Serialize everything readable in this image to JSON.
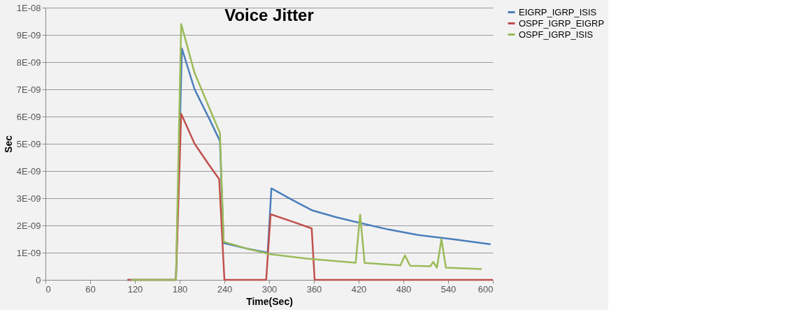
{
  "chart_data": {
    "type": "line",
    "title": "Voice Jitter",
    "xlabel": "Time(Sec)",
    "ylabel": "Sec",
    "xlim": [
      0,
      600
    ],
    "xticks": [
      0,
      60,
      120,
      180,
      240,
      300,
      360,
      420,
      480,
      540,
      600
    ],
    "ylim": [
      0,
      1e-08
    ],
    "yticks": [
      {
        "value": 0,
        "label": "0"
      },
      {
        "value": 1e-09,
        "label": "1E-09"
      },
      {
        "value": 2e-09,
        "label": "2E-09"
      },
      {
        "value": 3e-09,
        "label": "3E-09"
      },
      {
        "value": 4e-09,
        "label": "4E-09"
      },
      {
        "value": 5e-09,
        "label": "5E-09"
      },
      {
        "value": 6e-09,
        "label": "6E-09"
      },
      {
        "value": 7e-09,
        "label": "7E-09"
      },
      {
        "value": 8e-09,
        "label": "8E-09"
      },
      {
        "value": 9e-09,
        "label": "9E-09"
      },
      {
        "value": 1e-08,
        "label": "1E-08"
      }
    ],
    "grid": "y",
    "legend": "right",
    "marker": "none",
    "line_style": "solid",
    "series": [
      {
        "name": "EIGRP_IGRP_ISIS",
        "color": "#4a7ebb",
        "x": [
          110,
          175,
          183,
          200,
          220,
          234,
          239,
          270,
          298,
          303,
          330,
          358,
          390,
          425,
          460,
          500,
          550,
          597
        ],
        "values": [
          0,
          0,
          8.5e-09,
          7e-09,
          5.9e-09,
          5.1e-09,
          1.35e-09,
          1.15e-09,
          1e-09,
          3.36e-09,
          2.95e-09,
          2.55e-09,
          2.3e-09,
          2.07e-09,
          1.85e-09,
          1.65e-09,
          1.48e-09,
          1.31e-09
        ]
      },
      {
        "name": "OSPF_IGRP_EIGRP",
        "color": "#c0504d",
        "x": [
          110,
          175,
          182,
          200,
          220,
          233,
          240,
          296,
          302,
          330,
          357,
          361,
          600
        ],
        "values": [
          0,
          0,
          6.1e-09,
          5e-09,
          4.2e-09,
          3.7e-09,
          0,
          0,
          2.41e-09,
          2.15e-09,
          1.89e-09,
          0,
          0
        ]
      },
      {
        "name": "OSPF_IGRP_ISIS",
        "color": "#9bbb59",
        "x": [
          115,
          175,
          182,
          200,
          220,
          234,
          239,
          270,
          300,
          350,
          416,
          422,
          428,
          476,
          482,
          489,
          516,
          520,
          525,
          531,
          537,
          585
        ],
        "values": [
          0,
          0,
          9.4e-09,
          7.6e-09,
          6.3e-09,
          5.4e-09,
          1.4e-09,
          1.15e-09,
          9.5e-10,
          7.8e-10,
          6.3e-10,
          2.4e-09,
          6.2e-10,
          5.3e-10,
          9e-10,
          5.2e-10,
          5e-10,
          6.6e-10,
          4.5e-10,
          1.5e-09,
          4.5e-10,
          4e-10
        ]
      }
    ]
  }
}
